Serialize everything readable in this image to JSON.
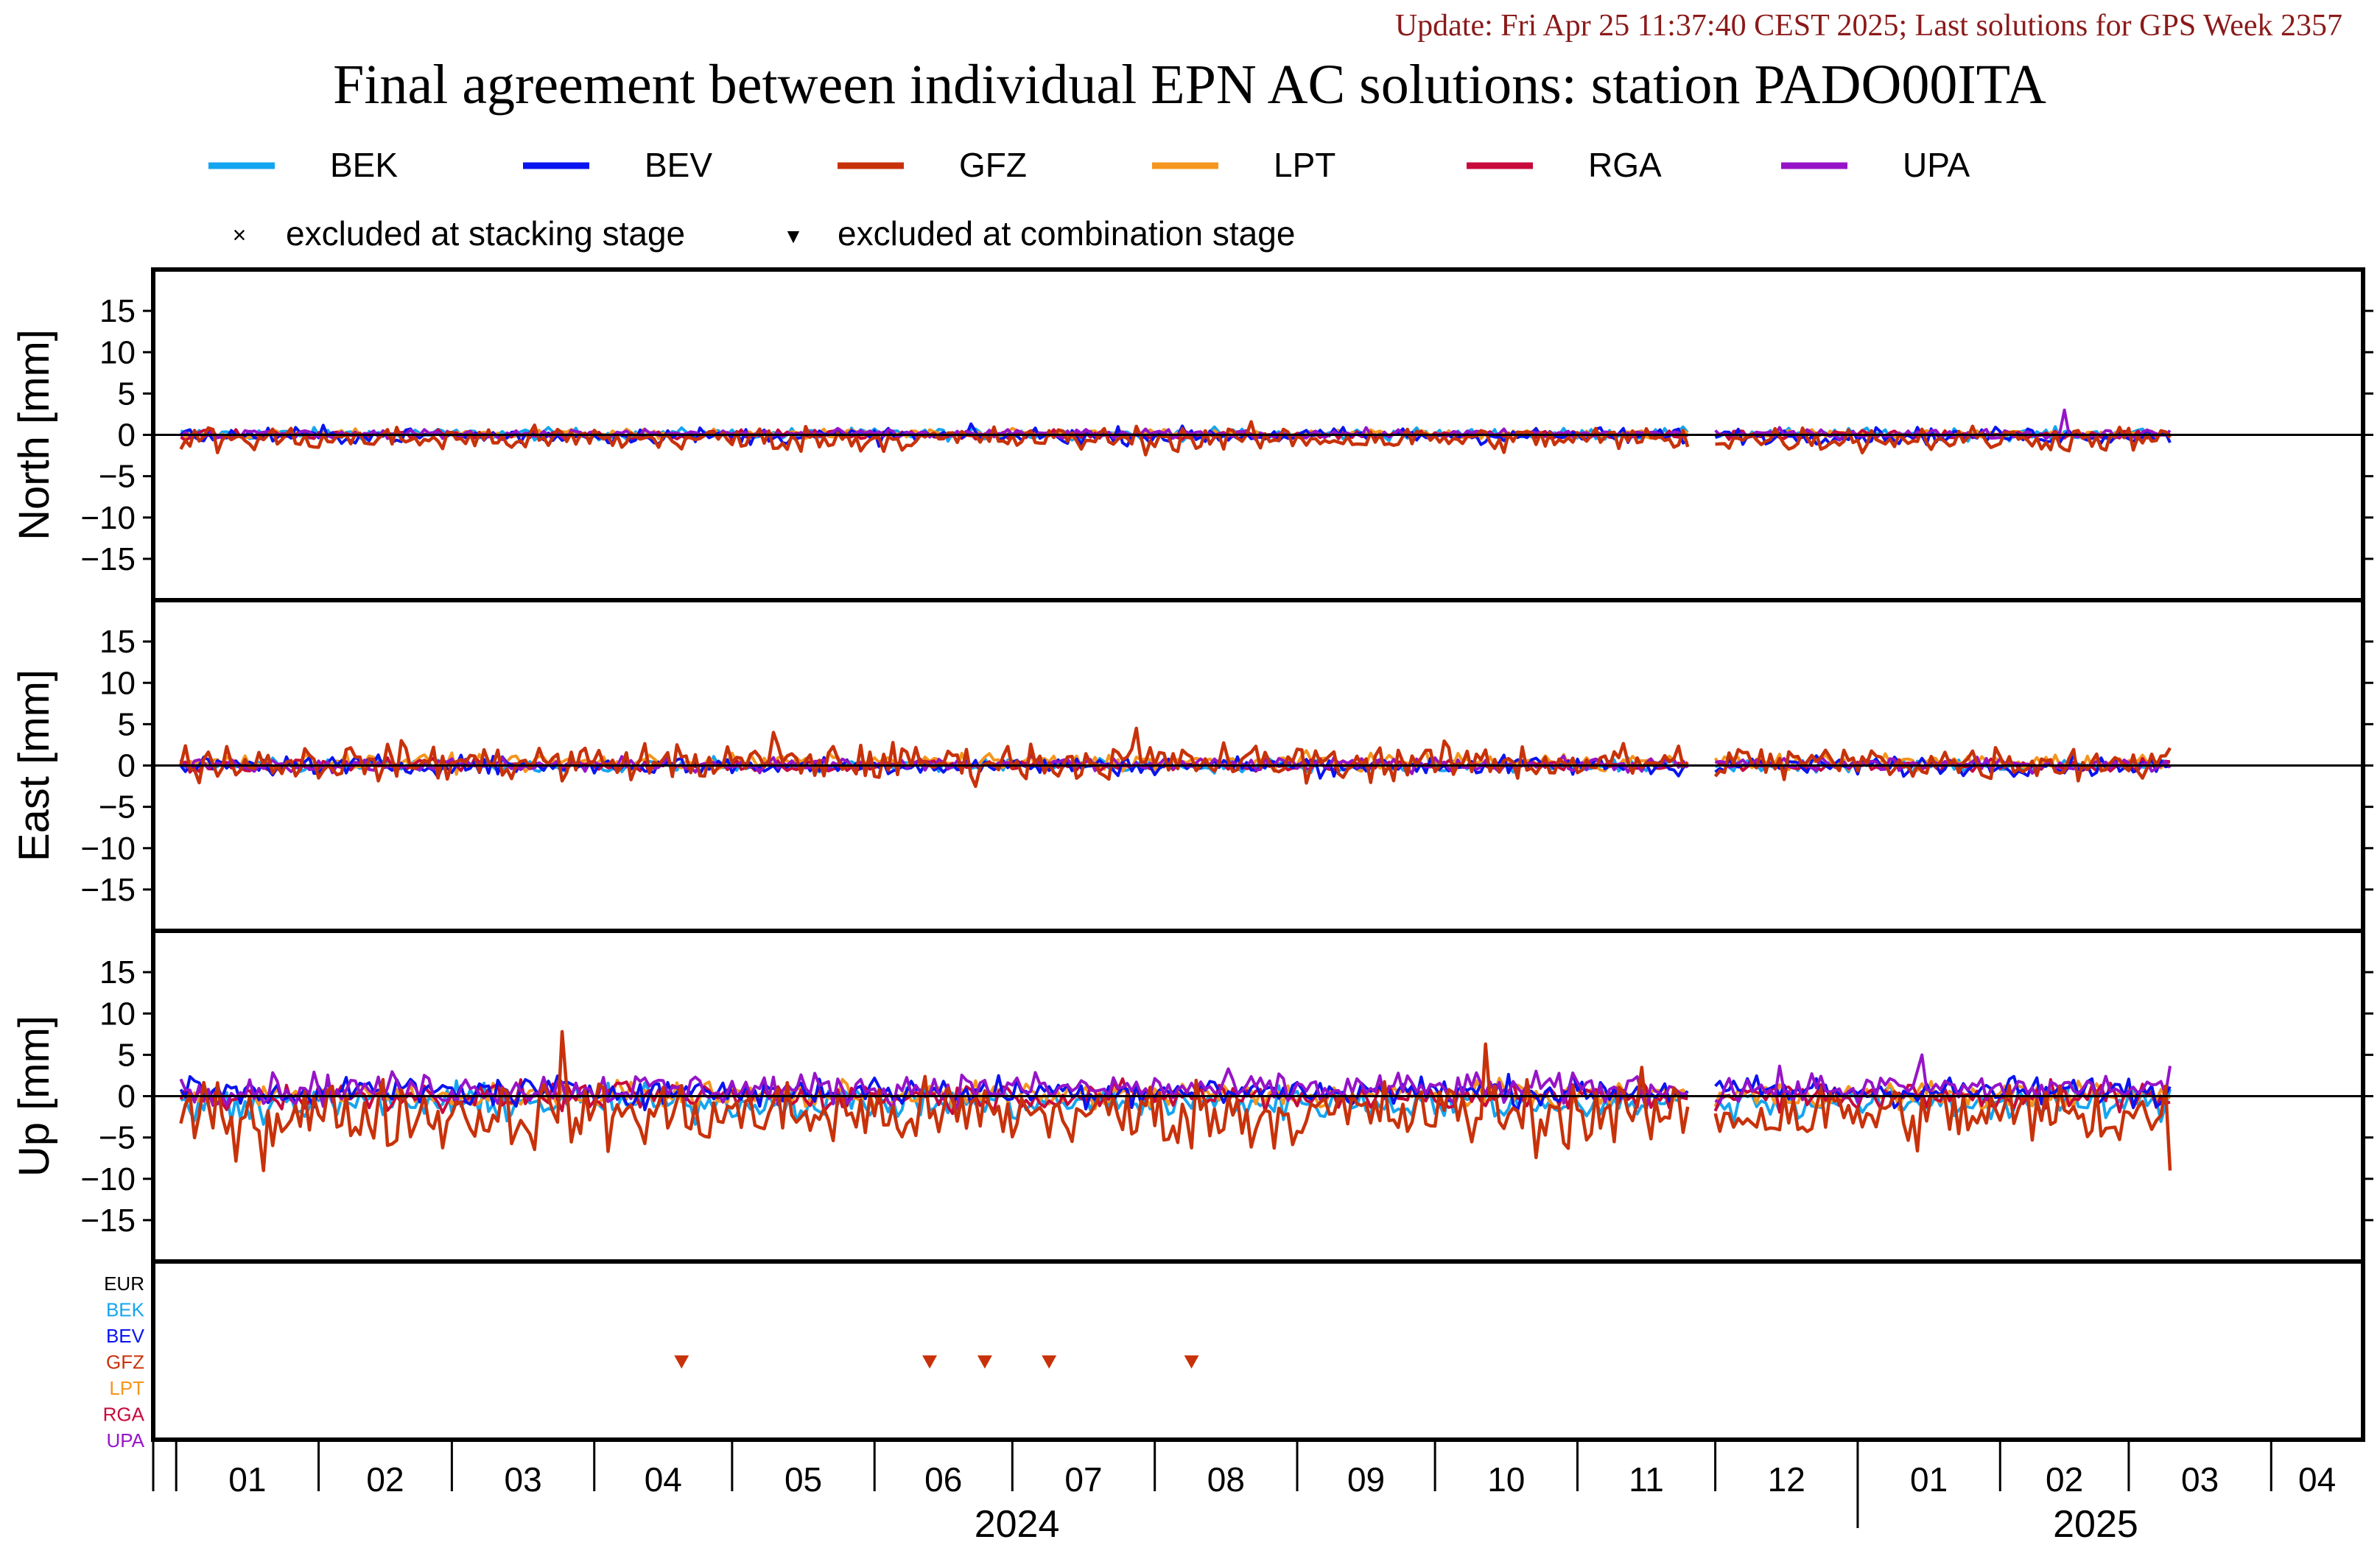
{
  "update_text": "Update: Fri Apr 25 11:37:40 CEST 2025; Last solutions for GPS Week 2357",
  "title": "Final agreement between individual EPN AC solutions: station PADO00ITA",
  "legend": {
    "series": [
      {
        "name": "BEK",
        "color": "#14a5f0"
      },
      {
        "name": "BEV",
        "color": "#0a14f0"
      },
      {
        "name": "GFZ",
        "color": "#c8320a"
      },
      {
        "name": "LPT",
        "color": "#f5961e"
      },
      {
        "name": "RGA",
        "color": "#c80a3c"
      },
      {
        "name": "UPA",
        "color": "#9614c8"
      }
    ],
    "markers": [
      {
        "symbol": "×",
        "label": "excluded at stacking stage"
      },
      {
        "symbol": "▼",
        "label": "excluded at combination stage"
      }
    ]
  },
  "chart_data": [
    {
      "type": "line",
      "ylabel": "North [mm]",
      "ylim": [
        -20,
        20
      ],
      "yticks": [
        15,
        10,
        5,
        0,
        -5,
        -10,
        -15
      ],
      "series_noise": {
        "BEK": 0.5,
        "BEV": 0.7,
        "GFZ": 1.1,
        "LPT": 0.4,
        "RGA": 0.4,
        "UPA": 0.4
      },
      "series_bias": {
        "BEK": 0.1,
        "BEV": -0.1,
        "GFZ": -0.5,
        "LPT": 0.1,
        "RGA": 0.0,
        "UPA": 0.1
      },
      "spikes": [
        {
          "series": "UPA",
          "date": "2025-02-15",
          "value": 3.0
        }
      ]
    },
    {
      "type": "line",
      "ylabel": "East [mm]",
      "ylim": [
        -20,
        20
      ],
      "yticks": [
        15,
        10,
        5,
        0,
        -5,
        -10,
        -15
      ],
      "series_noise": {
        "BEK": 0.6,
        "BEV": 0.8,
        "GFZ": 1.6,
        "LPT": 0.7,
        "RGA": 0.5,
        "UPA": 0.6
      },
      "series_bias": {
        "BEK": 0.0,
        "BEV": 0.0,
        "GFZ": 0.4,
        "LPT": 0.4,
        "RGA": 0.0,
        "UPA": 0.1
      },
      "spikes": [
        {
          "series": "GFZ",
          "date": "2024-07-28",
          "value": 4.5
        },
        {
          "series": "GFZ",
          "date": "2024-05-10",
          "value": 4.0
        }
      ]
    },
    {
      "type": "line",
      "ylabel": "Up [mm]",
      "ylim": [
        -20,
        20
      ],
      "yticks": [
        15,
        10,
        5,
        0,
        -5,
        -10,
        -15
      ],
      "series_noise": {
        "BEK": 1.4,
        "BEV": 1.3,
        "GFZ": 3.0,
        "LPT": 1.1,
        "RGA": 1.2,
        "UPA": 1.4
      },
      "series_bias": {
        "BEK": -0.8,
        "BEV": 0.6,
        "GFZ": -2.2,
        "LPT": 0.1,
        "RGA": 0.0,
        "UPA": 0.9
      },
      "spikes": [
        {
          "series": "GFZ",
          "date": "2024-03-25",
          "value": 7.8
        },
        {
          "series": "GFZ",
          "date": "2024-10-12",
          "value": 6.3
        },
        {
          "series": "GFZ",
          "date": "2024-01-20",
          "value": -9.0
        },
        {
          "series": "GFZ",
          "date": "2025-03-10",
          "value": -9.0
        },
        {
          "series": "UPA",
          "date": "2025-01-15",
          "value": 5.0
        }
      ]
    }
  ],
  "x_axis": {
    "start": "2023-12-27",
    "end": "2025-04-21",
    "data_end": "2025-03-10",
    "gap": [
      "2024-11-26",
      "2024-11-30"
    ],
    "month_labels": [
      "01",
      "02",
      "03",
      "04",
      "05",
      "06",
      "07",
      "08",
      "09",
      "10",
      "11",
      "12",
      "01",
      "02",
      "03",
      "04"
    ],
    "year_labels": [
      "2024",
      "2025"
    ]
  },
  "exclusion_panel": {
    "rows": [
      {
        "label": "EUR",
        "color": "#000000"
      },
      {
        "label": "BEK",
        "color": "#14a5f0"
      },
      {
        "label": "BEV",
        "color": "#0a14f0"
      },
      {
        "label": "GFZ",
        "color": "#c8320a"
      },
      {
        "label": "LPT",
        "color": "#f5961e"
      },
      {
        "label": "RGA",
        "color": "#c80a3c"
      },
      {
        "label": "UPA",
        "color": "#9614c8"
      }
    ],
    "combination_exclusions": [
      {
        "series": "GFZ",
        "date": "2024-04-20"
      },
      {
        "series": "GFZ",
        "date": "2024-06-13"
      },
      {
        "series": "GFZ",
        "date": "2024-06-25"
      },
      {
        "series": "GFZ",
        "date": "2024-07-09"
      },
      {
        "series": "GFZ",
        "date": "2024-08-09"
      }
    ]
  }
}
